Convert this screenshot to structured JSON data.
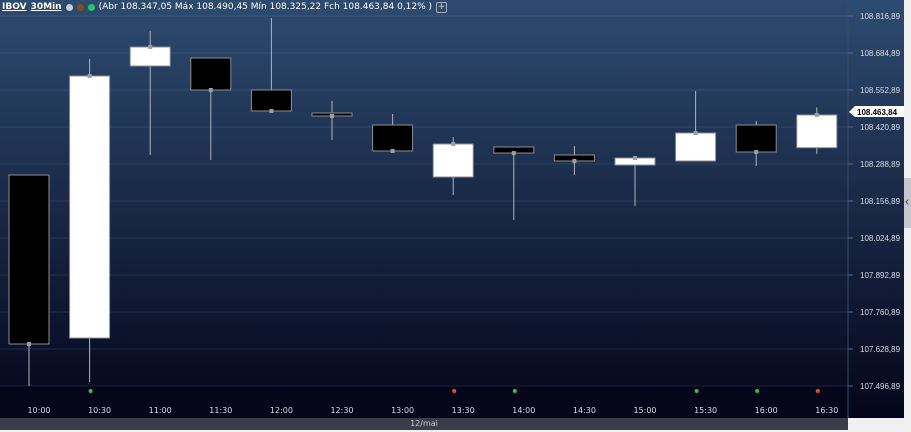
{
  "header": {
    "symbol": "IBOV",
    "timeframe": "30Min",
    "ohlc_text": "(Abr 108.347,05 Máx 108.490,45 Mín 108.325,22 Fch 108.463,84 0,12% )",
    "add_label": "+"
  },
  "date_label": "12/mai",
  "colors": {
    "bg_top": "#2d4b70",
    "bg_bottom": "#04051a",
    "up": "#ffffff",
    "down": "#000000",
    "wick": "#b0b4bc",
    "green_dot": "#22c55e",
    "red_dot": "#ef4444"
  },
  "chart_data": {
    "type": "candlestick",
    "categories": [
      "10:00",
      "10:30",
      "11:00",
      "11:30",
      "12:00",
      "12:30",
      "13:00",
      "13:30",
      "14:00",
      "14:30",
      "15:00",
      "15:30",
      "16:00",
      "16:30"
    ],
    "ohlc": [
      {
        "o": 108249.6,
        "h": 108249.6,
        "l": 107496.9,
        "c": 107646.7
      },
      {
        "o": 107668.1,
        "h": 108663.5,
        "l": 107511.1,
        "c": 108602.8
      },
      {
        "o": 108638.5,
        "h": 108763.4,
        "l": 108321.0,
        "c": 108706.3
      },
      {
        "o": 108667.1,
        "h": 108667.1,
        "l": 108303.2,
        "c": 108552.9
      },
      {
        "o": 108552.9,
        "h": 108809.8,
        "l": 108478.0,
        "c": 108478.0
      },
      {
        "o": 108470.8,
        "h": 108513.6,
        "l": 108374.5,
        "c": 108460.1
      },
      {
        "o": 108428.0,
        "h": 108467.3,
        "l": 108335.3,
        "c": 108335.3
      },
      {
        "o": 108242.5,
        "h": 108385.0,
        "l": 108178.3,
        "c": 108360.2
      },
      {
        "o": 108349.5,
        "h": 108349.5,
        "l": 108089.1,
        "c": 108328.0
      },
      {
        "o": 108321.0,
        "h": 108353.0,
        "l": 108249.6,
        "c": 108299.6
      },
      {
        "o": 108285.3,
        "h": 108310.3,
        "l": 108139.0,
        "c": 108310.3
      },
      {
        "o": 108299.6,
        "h": 108549.3,
        "l": 108299.6,
        "c": 108399.5
      },
      {
        "o": 108428.0,
        "h": 108442.3,
        "l": 108281.8,
        "c": 108331.7
      },
      {
        "o": 108347.05,
        "h": 108490.45,
        "l": 108325.22,
        "c": 108463.84
      }
    ],
    "signals": [
      "",
      "green",
      "",
      "",
      "",
      "",
      "",
      "red",
      "green",
      "",
      "",
      "green",
      "green",
      "red"
    ],
    "y_ticks": [
      "108.816,89",
      "108.684,89",
      "108.552,89",
      "108.420,89",
      "108.288,89",
      "108.156,89",
      "108.024,89",
      "107.892,89",
      "107.760,89",
      "107.628,89",
      "107.496,89"
    ],
    "ylim": [
      107496.89,
      108816.89
    ],
    "last_price_label": "108.463,84",
    "last_price": 108463.84,
    "grid": true
  }
}
